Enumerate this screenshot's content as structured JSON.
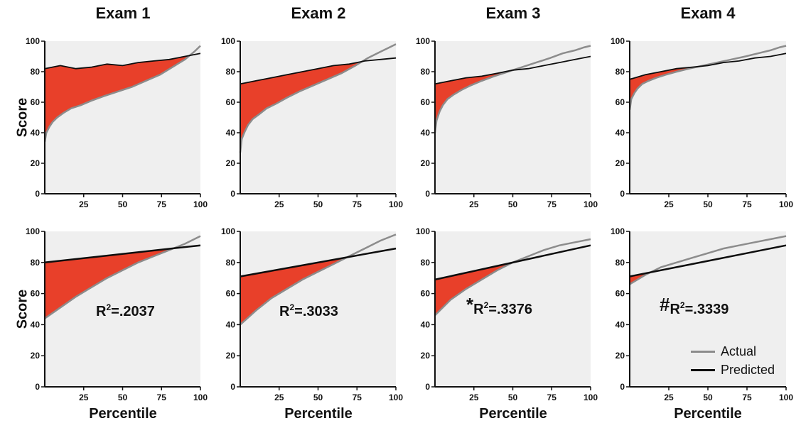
{
  "titles": [
    "Exam 1",
    "Exam 2",
    "Exam 3",
    "Exam 4"
  ],
  "axis": {
    "ylabel": "Score",
    "xlabel": "Percentile"
  },
  "legend": {
    "actual": "Actual",
    "predicted": "Predicted"
  },
  "r2": {
    "exam1": {
      "mark": "",
      "value": ".2037"
    },
    "exam2": {
      "mark": "",
      "value": ".3033"
    },
    "exam3": {
      "mark": "*",
      "value": ".3376"
    },
    "exam4": {
      "mark": "#",
      "value": ".3339"
    }
  },
  "colors": {
    "actual": "#8c8c8c",
    "predicted": "#0d0d0d",
    "gap": "#e8402a",
    "plot_bg": "#efefef"
  },
  "chart_data": [
    {
      "type": "area",
      "title": "Exam 1",
      "ylabel": "Score",
      "xlim": [
        0,
        100
      ],
      "ylim": [
        0,
        100
      ],
      "xticks": [
        25,
        50,
        75,
        100
      ],
      "yticks": [
        0,
        20,
        40,
        60,
        80,
        100
      ],
      "series": [
        {
          "kind": "actual",
          "x": [
            0,
            1,
            3,
            5,
            8,
            12,
            17,
            23,
            30,
            38,
            47,
            56,
            65,
            74,
            82,
            90,
            96,
            100
          ],
          "values": [
            34,
            40,
            44,
            47,
            50,
            53,
            56,
            58,
            61,
            64,
            67,
            70,
            74,
            78,
            83,
            88,
            93,
            97
          ]
        },
        {
          "kind": "predicted",
          "x": [
            0,
            10,
            20,
            30,
            40,
            50,
            60,
            70,
            80,
            90,
            100
          ],
          "values": [
            82,
            84,
            82,
            83,
            85,
            84,
            86,
            87,
            88,
            90,
            92
          ]
        }
      ]
    },
    {
      "type": "area",
      "title": "Exam 2",
      "xlim": [
        0,
        100
      ],
      "ylim": [
        0,
        100
      ],
      "xticks": [
        25,
        50,
        75,
        100
      ],
      "yticks": [
        0,
        20,
        40,
        60,
        80,
        100
      ],
      "series": [
        {
          "kind": "actual",
          "x": [
            0,
            1,
            3,
            5,
            8,
            12,
            17,
            23,
            30,
            38,
            47,
            56,
            65,
            74,
            82,
            90,
            96,
            100
          ],
          "values": [
            27,
            36,
            41,
            45,
            49,
            52,
            56,
            59,
            63,
            67,
            71,
            75,
            79,
            84,
            89,
            93,
            96,
            98
          ]
        },
        {
          "kind": "predicted",
          "x": [
            0,
            10,
            20,
            30,
            40,
            50,
            60,
            70,
            80,
            90,
            100
          ],
          "values": [
            72,
            74,
            76,
            78,
            80,
            82,
            84,
            85,
            87,
            88,
            89
          ]
        }
      ]
    },
    {
      "type": "area",
      "title": "Exam 3",
      "xlim": [
        0,
        100
      ],
      "ylim": [
        0,
        100
      ],
      "xticks": [
        25,
        50,
        75,
        100
      ],
      "yticks": [
        0,
        20,
        40,
        60,
        80,
        100
      ],
      "series": [
        {
          "kind": "actual",
          "x": [
            0,
            1,
            3,
            5,
            8,
            12,
            17,
            23,
            30,
            38,
            47,
            56,
            65,
            74,
            82,
            90,
            96,
            100
          ],
          "values": [
            40,
            48,
            54,
            58,
            62,
            65,
            68,
            71,
            74,
            77,
            80,
            83,
            86,
            89,
            92,
            94,
            96,
            97
          ]
        },
        {
          "kind": "predicted",
          "x": [
            0,
            10,
            20,
            30,
            40,
            50,
            60,
            70,
            80,
            90,
            100
          ],
          "values": [
            72,
            74,
            76,
            77,
            79,
            81,
            82,
            84,
            86,
            88,
            90
          ]
        }
      ]
    },
    {
      "type": "area",
      "title": "Exam 4",
      "xlim": [
        0,
        100
      ],
      "ylim": [
        0,
        100
      ],
      "xticks": [
        25,
        50,
        75,
        100
      ],
      "yticks": [
        0,
        20,
        40,
        60,
        80,
        100
      ],
      "series": [
        {
          "kind": "actual",
          "x": [
            0,
            1,
            3,
            5,
            8,
            12,
            17,
            23,
            30,
            38,
            47,
            56,
            65,
            74,
            82,
            90,
            96,
            100
          ],
          "values": [
            55,
            62,
            66,
            69,
            72,
            74,
            76,
            78,
            80,
            82,
            84,
            86,
            88,
            90,
            92,
            94,
            96,
            97
          ]
        },
        {
          "kind": "predicted",
          "x": [
            0,
            10,
            20,
            30,
            40,
            50,
            60,
            70,
            80,
            90,
            100
          ],
          "values": [
            75,
            78,
            80,
            82,
            83,
            84,
            86,
            87,
            89,
            90,
            92
          ]
        }
      ]
    },
    {
      "type": "area",
      "title": "Exam 1",
      "ylabel": "Score",
      "xlabel": "Percentile",
      "xlim": [
        0,
        100
      ],
      "ylim": [
        0,
        100
      ],
      "xticks": [
        25,
        50,
        75,
        100
      ],
      "yticks": [
        0,
        20,
        40,
        60,
        80,
        100
      ],
      "annotation": "R²=.2037",
      "series": [
        {
          "kind": "actual",
          "x": [
            0,
            10,
            20,
            30,
            40,
            50,
            60,
            70,
            80,
            90,
            100
          ],
          "values": [
            44,
            51,
            58,
            64,
            70,
            75,
            80,
            84,
            88,
            92,
            97
          ]
        },
        {
          "kind": "predicted",
          "x": [
            0,
            100
          ],
          "values": [
            80,
            91
          ]
        }
      ]
    },
    {
      "type": "area",
      "title": "Exam 2",
      "xlabel": "Percentile",
      "xlim": [
        0,
        100
      ],
      "ylim": [
        0,
        100
      ],
      "xticks": [
        25,
        50,
        75,
        100
      ],
      "yticks": [
        0,
        20,
        40,
        60,
        80,
        100
      ],
      "annotation": "R²=.3033",
      "series": [
        {
          "kind": "actual",
          "x": [
            0,
            10,
            20,
            30,
            40,
            50,
            60,
            70,
            80,
            90,
            100
          ],
          "values": [
            40,
            49,
            57,
            63,
            69,
            74,
            79,
            84,
            89,
            94,
            98
          ]
        },
        {
          "kind": "predicted",
          "x": [
            0,
            100
          ],
          "values": [
            71,
            89
          ]
        }
      ]
    },
    {
      "type": "area",
      "title": "Exam 3",
      "xlabel": "Percentile",
      "xlim": [
        0,
        100
      ],
      "ylim": [
        0,
        100
      ],
      "xticks": [
        25,
        50,
        75,
        100
      ],
      "yticks": [
        0,
        20,
        40,
        60,
        80,
        100
      ],
      "annotation": "*R²=.3376",
      "series": [
        {
          "kind": "actual",
          "x": [
            0,
            10,
            20,
            30,
            40,
            50,
            60,
            70,
            80,
            90,
            100
          ],
          "values": [
            46,
            56,
            63,
            69,
            75,
            80,
            84,
            88,
            91,
            93,
            95
          ]
        },
        {
          "kind": "predicted",
          "x": [
            0,
            100
          ],
          "values": [
            69,
            91
          ]
        }
      ]
    },
    {
      "type": "area",
      "title": "Exam 4",
      "xlabel": "Percentile",
      "xlim": [
        0,
        100
      ],
      "ylim": [
        0,
        100
      ],
      "xticks": [
        25,
        50,
        75,
        100
      ],
      "yticks": [
        0,
        20,
        40,
        60,
        80,
        100
      ],
      "annotation": "#R²=.3339",
      "series": [
        {
          "kind": "actual",
          "x": [
            0,
            10,
            20,
            30,
            40,
            50,
            60,
            70,
            80,
            90,
            100
          ],
          "values": [
            66,
            72,
            77,
            80,
            83,
            86,
            89,
            91,
            93,
            95,
            97
          ]
        },
        {
          "kind": "predicted",
          "x": [
            0,
            100
          ],
          "values": [
            71,
            91
          ]
        }
      ]
    }
  ]
}
